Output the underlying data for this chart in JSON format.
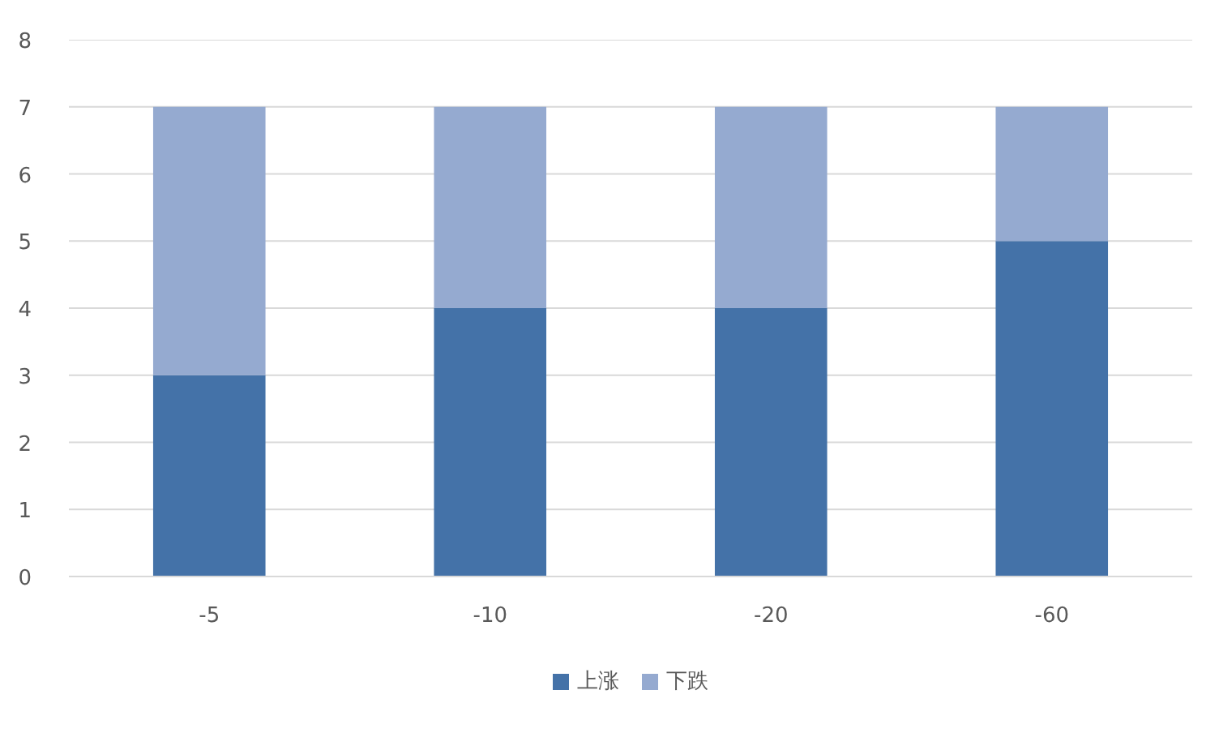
{
  "chart_data": {
    "type": "bar",
    "stacked": true,
    "categories": [
      "-5",
      "-10",
      "-20",
      "-60"
    ],
    "series": [
      {
        "name": "上涨",
        "color": "#4472a8",
        "values": [
          3,
          4,
          4,
          5
        ]
      },
      {
        "name": "下跌",
        "color": "#95aad0",
        "values": [
          4,
          3,
          3,
          2
        ]
      }
    ],
    "ylim": [
      0,
      8
    ],
    "yticks": [
      0,
      1,
      2,
      3,
      4,
      5,
      6,
      7,
      8
    ],
    "grid": "y",
    "legend": "bottom"
  }
}
